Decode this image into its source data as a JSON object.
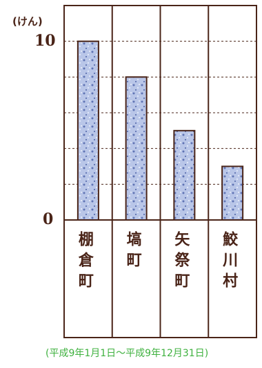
{
  "chart_data": {
    "type": "bar",
    "unit_label": "(けん)",
    "categories": [
      "棚倉町",
      "塙町",
      "矢祭町",
      "鮫川村"
    ],
    "values": [
      10,
      8,
      5,
      3
    ],
    "yticks": [
      "10",
      "0"
    ],
    "ylim": [
      0,
      12
    ],
    "grid": true,
    "note": "(平成9年1月1日〜平成9年12月31日)"
  },
  "colors": {
    "frame": "#4a2418",
    "bar_fill": "#b9c6e8",
    "bar_edge": "#4a2418",
    "grid": "#4a2418",
    "note": "#3fb13f"
  }
}
